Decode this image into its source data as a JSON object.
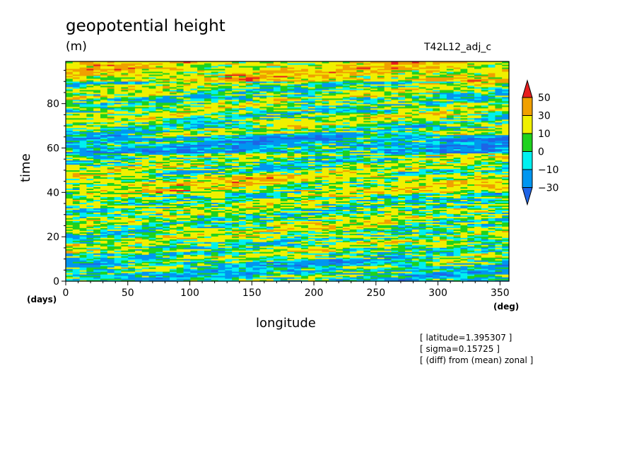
{
  "chart_data": {
    "type": "heatmap",
    "title": "geopotential height",
    "units": "(m)",
    "run_label": "T42L12_adj_c",
    "xlabel": "longitude",
    "xunit": "(deg)",
    "ylabel": "time",
    "yunit": "(days)",
    "xlim": [
      0,
      357.2
    ],
    "ylim": [
      0,
      99
    ],
    "x_ticks": [
      0,
      50,
      100,
      150,
      200,
      250,
      300,
      350
    ],
    "y_ticks": [
      0,
      20,
      40,
      60,
      80
    ],
    "colorbar": {
      "levels": [
        -30,
        -10,
        0,
        10,
        30,
        50
      ],
      "level_labels": [
        "50",
        "30",
        "10",
        "0",
        "−10",
        "−30"
      ],
      "colors": [
        "#1e64e6",
        "#0096f0",
        "#00f0f0",
        "#1ed21e",
        "#f0f000",
        "#f0a000",
        "#e61e1e"
      ],
      "extend": "both"
    },
    "field_description_values": {
      "dominant_band_days": [
        [
          0,
          10,
          "blue-cyan"
        ],
        [
          40,
          48,
          "yellow-green"
        ],
        [
          58,
          66,
          "blue"
        ],
        [
          90,
          99,
          "yellow"
        ]
      ]
    },
    "notes": [
      "[ latitude=1.395307 ]",
      "[ sigma=0.15725 ]",
      "[ (diff) from (mean) zonal ]"
    ]
  }
}
